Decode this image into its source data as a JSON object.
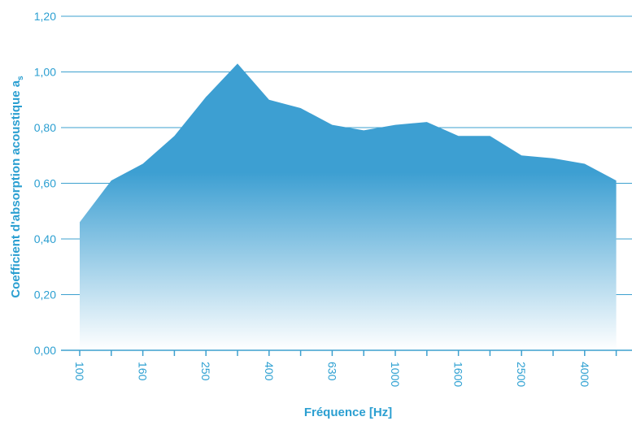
{
  "chart_data": {
    "type": "area",
    "title": "",
    "xlabel": "Fréquence [Hz]",
    "ylabel": "Coefficient d'absorption acoustique a",
    "ylabel_subscript": "s",
    "x": [
      "100",
      "125",
      "160",
      "200",
      "250",
      "315",
      "400",
      "500",
      "630",
      "800",
      "1000",
      "1250",
      "1600",
      "2000",
      "2500",
      "3150",
      "4000",
      "5000"
    ],
    "x_tick_labels": [
      "100",
      "160",
      "250",
      "400",
      "630",
      "1000",
      "1600",
      "2500",
      "4000"
    ],
    "values": [
      0.46,
      0.61,
      0.67,
      0.77,
      0.91,
      1.03,
      0.9,
      0.87,
      0.81,
      0.79,
      0.81,
      0.82,
      0.77,
      0.77,
      0.7,
      0.69,
      0.67,
      0.61
    ],
    "ylim": [
      0,
      1.2
    ],
    "y_ticks": [
      "0,00",
      "0,20",
      "0,40",
      "0,60",
      "0,80",
      "1,00",
      "1,20"
    ],
    "grid": true,
    "colors": {
      "fill": "#3d9fd2",
      "text": "#2b9fd1",
      "grid": "#3da0cf"
    }
  }
}
